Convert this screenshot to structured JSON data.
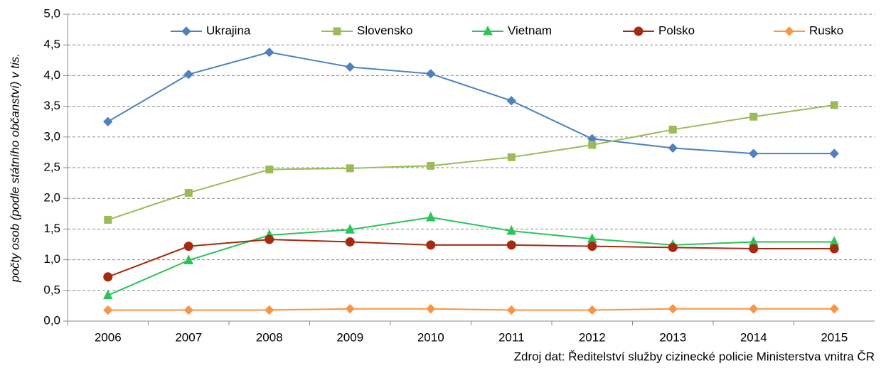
{
  "chart_data": {
    "type": "line",
    "y_label": "počty osob (podle státního občanství) v tis.",
    "source": "Zdroj dat: Ředitelství služby cizinecké policie Ministerstva vnitra ČR",
    "categories": [
      "2006",
      "2007",
      "2008",
      "2009",
      "2010",
      "2011",
      "2012",
      "2013",
      "2014",
      "2015"
    ],
    "series": [
      {
        "name": "Ukrajina",
        "color": "#4f81bd",
        "marker": "diamond",
        "values": [
          3.25,
          4.02,
          4.38,
          4.14,
          4.03,
          3.59,
          2.97,
          2.82,
          2.73,
          2.73
        ]
      },
      {
        "name": "Slovensko",
        "color": "#9bbb59",
        "marker": "square",
        "values": [
          1.65,
          2.09,
          2.47,
          2.49,
          2.53,
          2.67,
          2.87,
          3.12,
          3.33,
          3.52
        ]
      },
      {
        "name": "Vietnam",
        "color": "#2cc35a",
        "marker": "triangle",
        "values": [
          0.42,
          0.99,
          1.4,
          1.49,
          1.69,
          1.47,
          1.34,
          1.24,
          1.29,
          1.29
        ]
      },
      {
        "name": "Polsko",
        "color": "#a52a10",
        "marker": "circle",
        "values": [
          0.72,
          1.22,
          1.33,
          1.29,
          1.24,
          1.24,
          1.22,
          1.2,
          1.18,
          1.18
        ]
      },
      {
        "name": "Rusko",
        "color": "#f79646",
        "marker": "diamond",
        "values": [
          0.18,
          0.18,
          0.18,
          0.2,
          0.2,
          0.18,
          0.18,
          0.2,
          0.2,
          0.2
        ]
      }
    ],
    "ylim": [
      0,
      5
    ],
    "yticks": [
      {
        "value": 0,
        "label": "0,0"
      },
      {
        "value": 0.5,
        "label": "0,5"
      },
      {
        "value": 1,
        "label": "1,0"
      },
      {
        "value": 1.5,
        "label": "1,5"
      },
      {
        "value": 2,
        "label": "2,0"
      },
      {
        "value": 2.5,
        "label": "2,5"
      },
      {
        "value": 3,
        "label": "3,0"
      },
      {
        "value": 3.5,
        "label": "3,5"
      },
      {
        "value": 4,
        "label": "4,0"
      },
      {
        "value": 4.5,
        "label": "4,5"
      },
      {
        "value": 5,
        "label": "5,0"
      }
    ],
    "grid": true,
    "legend": "top"
  }
}
